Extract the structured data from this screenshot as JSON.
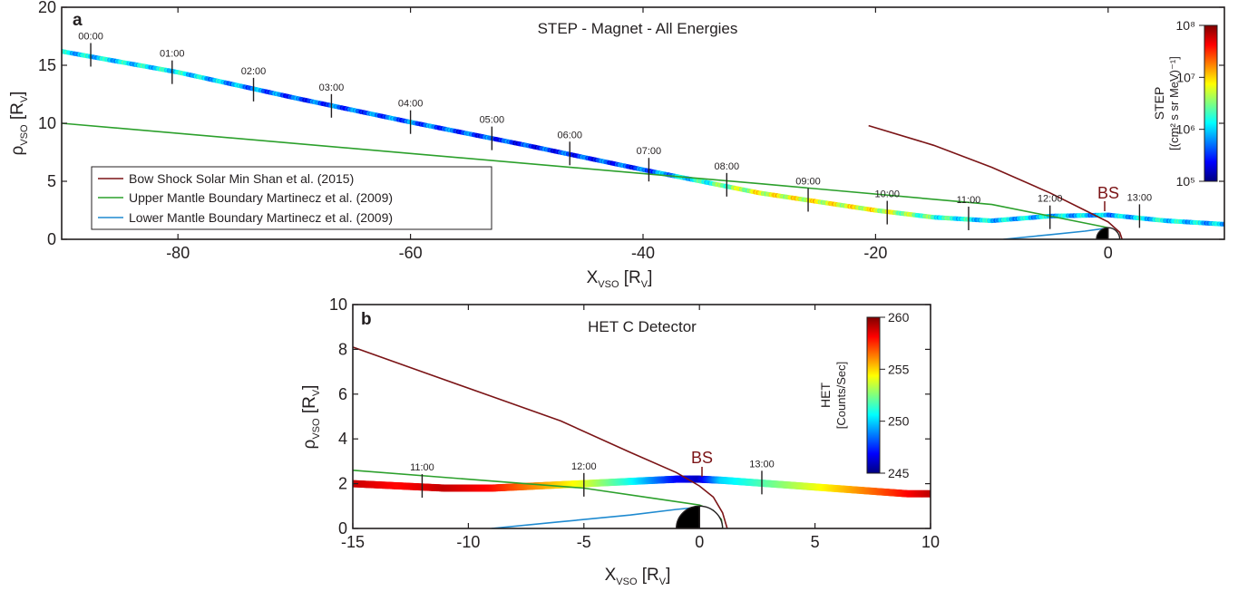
{
  "chart_data": [
    {
      "type": "line",
      "panel_label": "a",
      "title": "STEP - Magnet - All Energies",
      "xlabel": {
        "main": "X",
        "sub": "VSO",
        "rest": " [R",
        "sub2": "V",
        "end": "]"
      },
      "ylabel": {
        "main": "ρ",
        "sub": "VSO",
        "rest": " [R",
        "sub2": "V",
        "end": "]"
      },
      "xlim": [
        -90,
        10
      ],
      "ylim": [
        0,
        20
      ],
      "x_ticks": [
        -80,
        -60,
        -40,
        -20,
        0
      ],
      "y_ticks": [
        0,
        5,
        10,
        15,
        20
      ],
      "colorbar": {
        "label_line1": "STEP",
        "label_line2": "[(cm² s sr MeV)⁻¹]",
        "scale": "log",
        "tick_labels": [
          "10⁸",
          "10⁷",
          "10⁶",
          "10⁵"
        ],
        "tick_values": [
          100000000,
          10000000,
          1000000,
          100000
        ]
      },
      "legend": {
        "placement": "lower-left",
        "entries": [
          {
            "label": "Bow Shock Solar Min Shan et al. (2015)",
            "color": "#7b1416"
          },
          {
            "label": "Upper Mantle Boundary Martinecz et al. (2009)",
            "color": "#2ca02c"
          },
          {
            "label": "Lower Mantle Boundary Martinecz et al. (2009)",
            "color": "#1f8ad0"
          }
        ]
      },
      "annotation_bs": "BS",
      "trajectory_time_labels": [
        {
          "label": "00:00",
          "x": -87.5,
          "y": 15.9
        },
        {
          "label": "01:00",
          "x": -80.5,
          "y": 14.4
        },
        {
          "label": "02:00",
          "x": -73.5,
          "y": 12.9
        },
        {
          "label": "03:00",
          "x": -66.8,
          "y": 11.5
        },
        {
          "label": "04:00",
          "x": -60.0,
          "y": 10.1
        },
        {
          "label": "05:00",
          "x": -53.0,
          "y": 8.7
        },
        {
          "label": "06:00",
          "x": -46.3,
          "y": 7.4
        },
        {
          "label": "07:00",
          "x": -39.5,
          "y": 6.0
        },
        {
          "label": "08:00",
          "x": -32.8,
          "y": 4.7
        },
        {
          "label": "09:00",
          "x": -25.8,
          "y": 3.4
        },
        {
          "label": "10:00",
          "x": -19.0,
          "y": 2.3
        },
        {
          "label": "11:00",
          "x": -12.0,
          "y": 1.8
        },
        {
          "label": "12:00",
          "x": -5.0,
          "y": 1.9
        },
        {
          "label": "13:00",
          "x": 2.7,
          "y": 2.0
        }
      ],
      "series": [
        {
          "name": "Bow Shock Solar Min Shan et al. (2015)",
          "x": [
            -20.6,
            -15,
            -10,
            -5,
            -2,
            0,
            1.0,
            1.2
          ],
          "y": [
            9.8,
            8.1,
            6.2,
            4.0,
            2.5,
            1.5,
            0.6,
            0
          ]
        },
        {
          "name": "Upper Mantle Boundary Martinecz et al. (2009)",
          "x": [
            -90,
            -60,
            -30,
            -10,
            -5,
            -1,
            0,
            0.8,
            1.0
          ],
          "y": [
            10.0,
            7.4,
            4.8,
            3.0,
            2.0,
            1.2,
            1.0,
            0.5,
            0
          ]
        },
        {
          "name": "Lower Mantle Boundary Martinecz et al. (2009)",
          "x": [
            -9,
            -5,
            -2,
            -0.2,
            0.6,
            0.9
          ],
          "y": [
            0,
            0.4,
            0.7,
            0.95,
            0.6,
            0
          ]
        },
        {
          "name": "",
          "x": [
            -90,
            -80,
            -70,
            -60,
            -50,
            -40,
            -30,
            -20,
            -15,
            -10,
            -5,
            0,
            5,
            10
          ],
          "y": [
            16.2,
            14.4,
            12.2,
            10.1,
            8.1,
            6.0,
            4.0,
            2.5,
            1.9,
            1.6,
            2.0,
            2.1,
            1.6,
            1.3
          ],
          "flux_log10": [
            6.0,
            6.1,
            5.6,
            5.7,
            5.5,
            5.6,
            6.8,
            6.8,
            6.3,
            6.0,
            6.0,
            5.9,
            6.1,
            5.9
          ]
        }
      ]
    },
    {
      "type": "line",
      "panel_label": "b",
      "title": "HET C Detector",
      "xlabel": {
        "main": "X",
        "sub": "VSO",
        "rest": " [R",
        "sub2": "V",
        "end": "]"
      },
      "ylabel": {
        "main": "ρ",
        "sub": "VSO",
        "rest": " [R",
        "sub2": "V",
        "end": "]"
      },
      "xlim": [
        -15,
        10
      ],
      "ylim": [
        0,
        10
      ],
      "x_ticks": [
        -15,
        -10,
        -5,
        0,
        5,
        10
      ],
      "y_ticks": [
        0,
        2,
        4,
        6,
        8,
        10
      ],
      "colorbar": {
        "label_line1": "HET",
        "label_line2": "[Counts/Sec]",
        "scale": "linear",
        "range": [
          245,
          260
        ],
        "tick_values": [
          245,
          250,
          255,
          260
        ]
      },
      "annotation_bs": "BS",
      "trajectory_time_labels": [
        {
          "label": "11:00",
          "x": -12.0,
          "y": 1.9
        },
        {
          "label": "12:00",
          "x": -5.0,
          "y": 1.95
        },
        {
          "label": "13:00",
          "x": 2.7,
          "y": 2.05
        }
      ],
      "series": [
        {
          "name": "Bow Shock Solar Min Shan et al. (2015)",
          "x": [
            -15,
            -12,
            -9,
            -6,
            -3,
            -1,
            0,
            0.6,
            1.0,
            1.2
          ],
          "y": [
            8.1,
            7.0,
            5.9,
            4.8,
            3.4,
            2.5,
            1.9,
            1.4,
            0.7,
            0
          ]
        },
        {
          "name": "Upper Mantle Boundary Martinecz et al. (2009)",
          "x": [
            -15,
            -10,
            -5,
            -2,
            0,
            0.6,
            0.95,
            1.0
          ],
          "y": [
            2.6,
            2.2,
            1.8,
            1.35,
            1.05,
            0.8,
            0.4,
            0
          ]
        },
        {
          "name": "Lower Mantle Boundary Martinecz et al. (2009)",
          "x": [
            -9,
            -6,
            -3,
            -1,
            0,
            0.6,
            0.9
          ],
          "y": [
            0,
            0.3,
            0.6,
            0.85,
            0.95,
            0.6,
            0
          ]
        },
        {
          "name": "",
          "x": [
            -15,
            -13,
            -11,
            -9,
            -7,
            -5,
            -3,
            -1,
            0,
            1,
            3,
            5,
            7,
            9,
            10
          ],
          "y": [
            2.0,
            1.9,
            1.8,
            1.8,
            1.9,
            2.0,
            2.1,
            2.2,
            2.2,
            2.15,
            2.0,
            1.85,
            1.7,
            1.55,
            1.55
          ],
          "counts": [
            259,
            258,
            259,
            258,
            256,
            254,
            251,
            247,
            246,
            250,
            252,
            254,
            256,
            258,
            259
          ]
        }
      ]
    }
  ]
}
